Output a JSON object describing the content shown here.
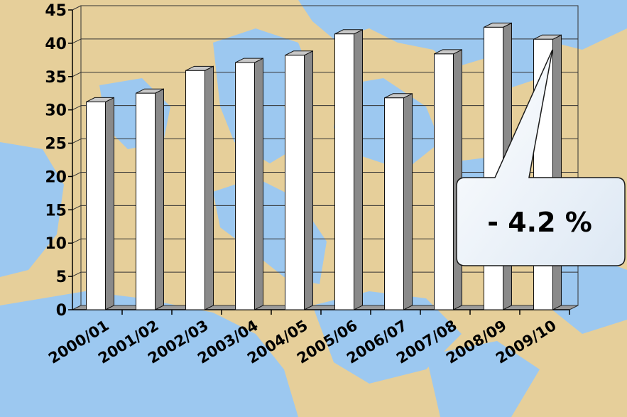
{
  "chart_data": {
    "type": "bar",
    "title": "",
    "xlabel": "",
    "ylabel": "",
    "categories": [
      "2000/01",
      "2001/02",
      "2002/03",
      "2003/04",
      "2004/05",
      "2005/06",
      "2006/07",
      "2007/08",
      "2008/09",
      "2009/10"
    ],
    "values": [
      31.2,
      32.5,
      35.9,
      37.1,
      38.2,
      41.4,
      31.8,
      38.4,
      42.4,
      40.6
    ],
    "ylim": [
      0,
      45
    ],
    "yticks": [
      0,
      5,
      10,
      15,
      20,
      25,
      30,
      35,
      40,
      45
    ],
    "grid": true,
    "legend": "none",
    "style": "3d-column",
    "bar_color": "#ffffff",
    "bar_side_color": "#8a8a8a",
    "bar_top_color": "#c8c8c8",
    "background": "map of Europe (sea #9cc8f0, land #e6cf9a)",
    "annotation": {
      "text": "- 4.2 %",
      "points_to": "2009/10",
      "fill": "#ffffff"
    }
  }
}
